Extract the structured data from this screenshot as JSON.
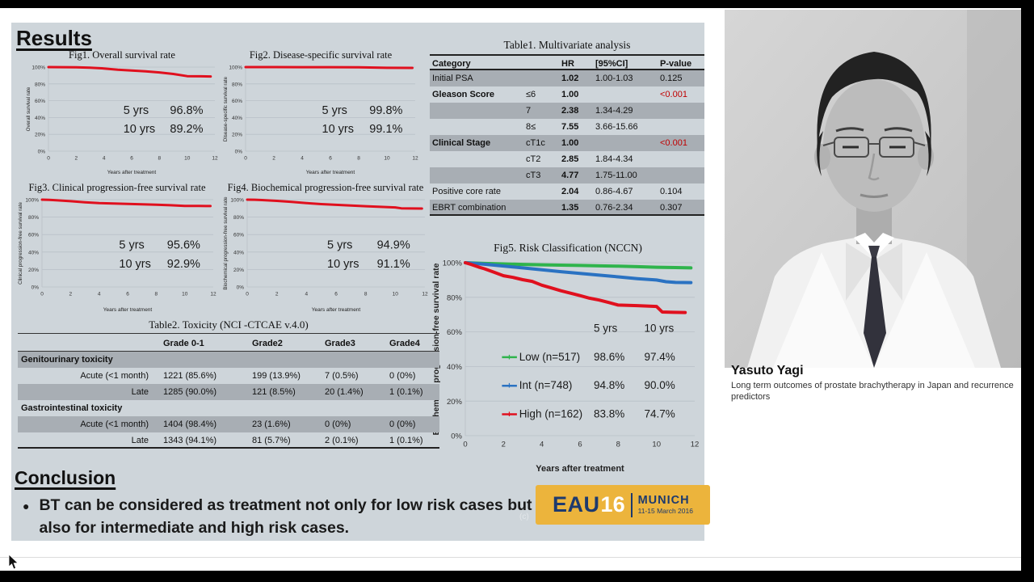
{
  "slide": {
    "results_heading": "Results",
    "conclusion_heading": "Conclusion",
    "conclusion_bullet": "BT can be considered as treatment not only for low risk cases but also for intermediate and high risk cases.",
    "copyright_mark": "(c)"
  },
  "logo": {
    "eau": "EAU",
    "year": "16",
    "city": "MUNICH",
    "dates": "11-15 March 2016"
  },
  "speaker": {
    "name": "Yasuto Yagi",
    "talk_title": "Long term outcomes of prostate brachytherapy in Japan and recurrence predictors"
  },
  "tables": {
    "t1": {
      "title": "Table1. Multivariate analysis",
      "headers": {
        "category": "Category",
        "hr": "HR",
        "ci": "[95%CI]",
        "p": "P-value"
      },
      "rows": [
        {
          "category": "Initial PSA",
          "sub": "",
          "hr": "1.02",
          "ci": "1.00-1.03",
          "p": "0.125"
        },
        {
          "category": "Gleason Score",
          "sub": "≤6",
          "hr": "1.00",
          "ci": "",
          "p": "<0.001"
        },
        {
          "category": "",
          "sub": "7",
          "hr": "2.38",
          "ci": "1.34-4.29",
          "p": ""
        },
        {
          "category": "",
          "sub": "8≤",
          "hr": "7.55",
          "ci": "3.66-15.66",
          "p": ""
        },
        {
          "category": "Clinical Stage",
          "sub": "cT1c",
          "hr": "1.00",
          "ci": "",
          "p": "<0.001"
        },
        {
          "category": "",
          "sub": "cT2",
          "hr": "2.85",
          "ci": "1.84-4.34",
          "p": ""
        },
        {
          "category": "",
          "sub": "cT3",
          "hr": "4.77",
          "ci": "1.75-11.00",
          "p": ""
        },
        {
          "category": "Positive core rate",
          "sub": "",
          "hr": "2.04",
          "ci": "0.86-4.67",
          "p": "0.104"
        },
        {
          "category": "EBRT combination",
          "sub": "",
          "hr": "1.35",
          "ci": "0.76-2.34",
          "p": "0.307"
        }
      ]
    },
    "t2": {
      "title": "Table2. Toxicity (NCI -CTCAE v.4.0)",
      "headers": {
        "label": "",
        "g01": "Grade 0-1",
        "g2": "Grade2",
        "g3": "Grade3",
        "g4": "Grade4"
      },
      "rows": [
        {
          "label": "Genitourinary toxicity",
          "g01": "",
          "g2": "",
          "g3": "",
          "g4": ""
        },
        {
          "label": "Acute (<1 month)",
          "g01": "1221 (85.6%)",
          "g2": "199 (13.9%)",
          "g3": "7 (0.5%)",
          "g4": "0 (0%)"
        },
        {
          "label": "Late",
          "g01": "1285 (90.0%)",
          "g2": "121 (8.5%)",
          "g3": "20 (1.4%)",
          "g4": "1 (0.1%)"
        },
        {
          "label": "Gastrointestinal toxicity",
          "g01": "",
          "g2": "",
          "g3": "",
          "g4": ""
        },
        {
          "label": "Acute (<1 month)",
          "g01": "1404 (98.4%)",
          "g2": "23 (1.6%)",
          "g3": "0 (0%)",
          "g4": "0 (0%)"
        },
        {
          "label": "Late",
          "g01": "1343 (94.1%)",
          "g2": "81 (5.7%)",
          "g3": "2 (0.1%)",
          "g4": "1 (0.1%)"
        }
      ]
    }
  },
  "chart_data": [
    {
      "type": "line",
      "title": "Fig1. Overall survival rate",
      "xlabel": "Years after treatment",
      "ylabel": "Overall survival rate",
      "xlim": [
        0,
        12
      ],
      "ylim": [
        0,
        100
      ],
      "xticks": [
        0,
        2,
        4,
        6,
        8,
        10,
        12
      ],
      "yticks": [
        {
          "v": 0,
          "label": "0%"
        },
        {
          "v": 20,
          "label": "20%"
        },
        {
          "v": 40,
          "label": "40%"
        },
        {
          "v": 60,
          "label": "60%"
        },
        {
          "v": 80,
          "label": "80%"
        },
        {
          "v": 100,
          "label": "100%"
        }
      ],
      "series": [
        {
          "name": "Overall survival",
          "color": "#e0101e",
          "points": [
            [
              0,
              100
            ],
            [
              1,
              99.9
            ],
            [
              2,
              99.7
            ],
            [
              3,
              99.3
            ],
            [
              4,
              98.4
            ],
            [
              5,
              96.8
            ],
            [
              6,
              96.0
            ],
            [
              7,
              95.0
            ],
            [
              8,
              93.7
            ],
            [
              9,
              91.8
            ],
            [
              10,
              89.2
            ],
            [
              11,
              89.0
            ],
            [
              11.7,
              88.8
            ]
          ]
        }
      ],
      "annotation": {
        "rows": [
          {
            "label": "5 yrs",
            "value": "96.8%"
          },
          {
            "label": "10 yrs",
            "value": "89.2%"
          }
        ]
      }
    },
    {
      "type": "line",
      "title": "Fig2. Disease-specific survival rate",
      "xlabel": "Years after treatment",
      "ylabel": "Disease-specific survival rate",
      "xlim": [
        0,
        12
      ],
      "ylim": [
        0,
        100
      ],
      "xticks": [
        0,
        2,
        4,
        6,
        8,
        10,
        12
      ],
      "yticks": [
        {
          "v": 0,
          "label": "0%"
        },
        {
          "v": 20,
          "label": "20%"
        },
        {
          "v": 40,
          "label": "40%"
        },
        {
          "v": 60,
          "label": "60%"
        },
        {
          "v": 80,
          "label": "80%"
        },
        {
          "v": 100,
          "label": "100%"
        }
      ],
      "series": [
        {
          "name": "Disease-specific survival",
          "color": "#e0101e",
          "points": [
            [
              0,
              100
            ],
            [
              2,
              100
            ],
            [
              4,
              99.9
            ],
            [
              6,
              99.9
            ],
            [
              8,
              99.8
            ],
            [
              10,
              99.1
            ],
            [
              11.8,
              99.0
            ]
          ]
        }
      ],
      "annotation": {
        "rows": [
          {
            "label": "5 yrs",
            "value": "99.8%"
          },
          {
            "label": "10 yrs",
            "value": "99.1%"
          }
        ]
      }
    },
    {
      "type": "line",
      "title": "Fig3. Clinical progression-free survival rate",
      "xlabel": "Years after treatment",
      "ylabel": "Clinical progression-free survival rate",
      "xlim": [
        0,
        12
      ],
      "ylim": [
        0,
        100
      ],
      "xticks": [
        0,
        2,
        4,
        6,
        8,
        10,
        12
      ],
      "yticks": [
        {
          "v": 0,
          "label": "0%"
        },
        {
          "v": 20,
          "label": "20%"
        },
        {
          "v": 40,
          "label": "40%"
        },
        {
          "v": 60,
          "label": "60%"
        },
        {
          "v": 80,
          "label": "80%"
        },
        {
          "v": 100,
          "label": "100%"
        }
      ],
      "series": [
        {
          "name": "Clinical progression-free survival",
          "color": "#e0101e",
          "points": [
            [
              0,
              100
            ],
            [
              0.5,
              99.8
            ],
            [
              1,
              99.3
            ],
            [
              2,
              98.2
            ],
            [
              3,
              97.0
            ],
            [
              4,
              96.1
            ],
            [
              5,
              95.6
            ],
            [
              6,
              95.2
            ],
            [
              7,
              94.7
            ],
            [
              8,
              94.2
            ],
            [
              9,
              93.6
            ],
            [
              10,
              92.9
            ],
            [
              11,
              92.8
            ],
            [
              11.8,
              92.7
            ]
          ]
        }
      ],
      "annotation": {
        "rows": [
          {
            "label": "5 yrs",
            "value": "95.6%"
          },
          {
            "label": "10 yrs",
            "value": "92.9%"
          }
        ]
      }
    },
    {
      "type": "line",
      "title": "Fig4. Biochemical progression-free survival rate",
      "xlabel": "Years after treatment",
      "ylabel": "Biochemical progression-free survival rate",
      "xlim": [
        0,
        12
      ],
      "ylim": [
        0,
        100
      ],
      "xticks": [
        0,
        2,
        4,
        6,
        8,
        10,
        12
      ],
      "yticks": [
        {
          "v": 0,
          "label": "0%"
        },
        {
          "v": 20,
          "label": "20%"
        },
        {
          "v": 40,
          "label": "40%"
        },
        {
          "v": 60,
          "label": "60%"
        },
        {
          "v": 80,
          "label": "80%"
        },
        {
          "v": 100,
          "label": "100%"
        }
      ],
      "series": [
        {
          "name": "Biochemical progression-free survival",
          "color": "#e0101e",
          "points": [
            [
              0,
              100
            ],
            [
              0.5,
              99.9
            ],
            [
              1,
              99.5
            ],
            [
              2,
              98.6
            ],
            [
              3,
              97.4
            ],
            [
              4,
              96.1
            ],
            [
              5,
              94.9
            ],
            [
              6,
              94.1
            ],
            [
              7,
              93.3
            ],
            [
              8,
              92.5
            ],
            [
              9,
              91.8
            ],
            [
              10,
              91.1
            ],
            [
              10.4,
              90.1
            ],
            [
              11,
              89.9
            ],
            [
              11.8,
              89.8
            ]
          ]
        }
      ],
      "annotation": {
        "rows": [
          {
            "label": "5 yrs",
            "value": "94.9%"
          },
          {
            "label": "10 yrs",
            "value": "91.1%"
          }
        ]
      }
    },
    {
      "type": "line",
      "title": "Fig5. Risk Classification (NCCN)",
      "xlabel": "Years after treatment",
      "ylabel": "Biochemical progression-free survival rate",
      "xlim": [
        0,
        12
      ],
      "ylim": [
        0,
        100
      ],
      "xticks": [
        0,
        2,
        4,
        6,
        8,
        10,
        12
      ],
      "yticks": [
        {
          "v": 0,
          "label": "0%"
        },
        {
          "v": 20,
          "label": "20%"
        },
        {
          "v": 40,
          "label": "40%"
        },
        {
          "v": 60,
          "label": "60%"
        },
        {
          "v": 80,
          "label": "80%"
        },
        {
          "v": 100,
          "label": "100%"
        }
      ],
      "series": [
        {
          "name": "Low (n=517)",
          "color": "#2fb44c",
          "points": [
            [
              0,
              100
            ],
            [
              1,
              99.6
            ],
            [
              2,
              99.3
            ],
            [
              3,
              99.0
            ],
            [
              4,
              98.8
            ],
            [
              5,
              98.6
            ],
            [
              6,
              98.4
            ],
            [
              7,
              98.2
            ],
            [
              8,
              98.0
            ],
            [
              9,
              97.7
            ],
            [
              10,
              97.4
            ],
            [
              11,
              97.2
            ],
            [
              11.8,
              97.0
            ]
          ]
        },
        {
          "name": "Int (n=748)",
          "color": "#2a72c2",
          "points": [
            [
              0,
              100
            ],
            [
              0.5,
              99.6
            ],
            [
              1,
              99.1
            ],
            [
              2,
              98.1
            ],
            [
              3,
              97.0
            ],
            [
              4,
              95.9
            ],
            [
              5,
              94.8
            ],
            [
              6,
              93.8
            ],
            [
              7,
              92.8
            ],
            [
              8,
              91.8
            ],
            [
              9,
              90.8
            ],
            [
              10,
              90.0
            ],
            [
              10.5,
              89.0
            ],
            [
              11,
              88.6
            ],
            [
              11.8,
              88.5
            ]
          ]
        },
        {
          "name": "High (n=162)",
          "color": "#e0101e",
          "points": [
            [
              0,
              100
            ],
            [
              0.3,
              99.0
            ],
            [
              0.7,
              97.5
            ],
            [
              1,
              96.5
            ],
            [
              1.5,
              94.5
            ],
            [
              2,
              92.5
            ],
            [
              2.5,
              91.5
            ],
            [
              3,
              90.2
            ],
            [
              3.5,
              89.2
            ],
            [
              4,
              87.0
            ],
            [
              4.5,
              85.4
            ],
            [
              5,
              83.8
            ],
            [
              5.5,
              82.4
            ],
            [
              6,
              81.0
            ],
            [
              6.5,
              79.5
            ],
            [
              7,
              78.4
            ],
            [
              7.5,
              77.0
            ],
            [
              8,
              75.5
            ],
            [
              9,
              75.2
            ],
            [
              10,
              74.7
            ],
            [
              10.3,
              71.5
            ],
            [
              10.9,
              71.3
            ],
            [
              11.5,
              71.2
            ]
          ]
        }
      ],
      "legend": {
        "col_headers": [
          "5 yrs",
          "10 yrs"
        ],
        "rows": [
          {
            "label": "Low (n=517)",
            "color": "#2fb44c",
            "values": [
              "98.6%",
              "97.4%"
            ]
          },
          {
            "label": "Int (n=748)",
            "color": "#2a72c2",
            "values": [
              "94.8%",
              "90.0%"
            ]
          },
          {
            "label": "High (n=162)",
            "color": "#e0101e",
            "values": [
              "83.8%",
              "74.7%"
            ]
          }
        ]
      }
    }
  ]
}
